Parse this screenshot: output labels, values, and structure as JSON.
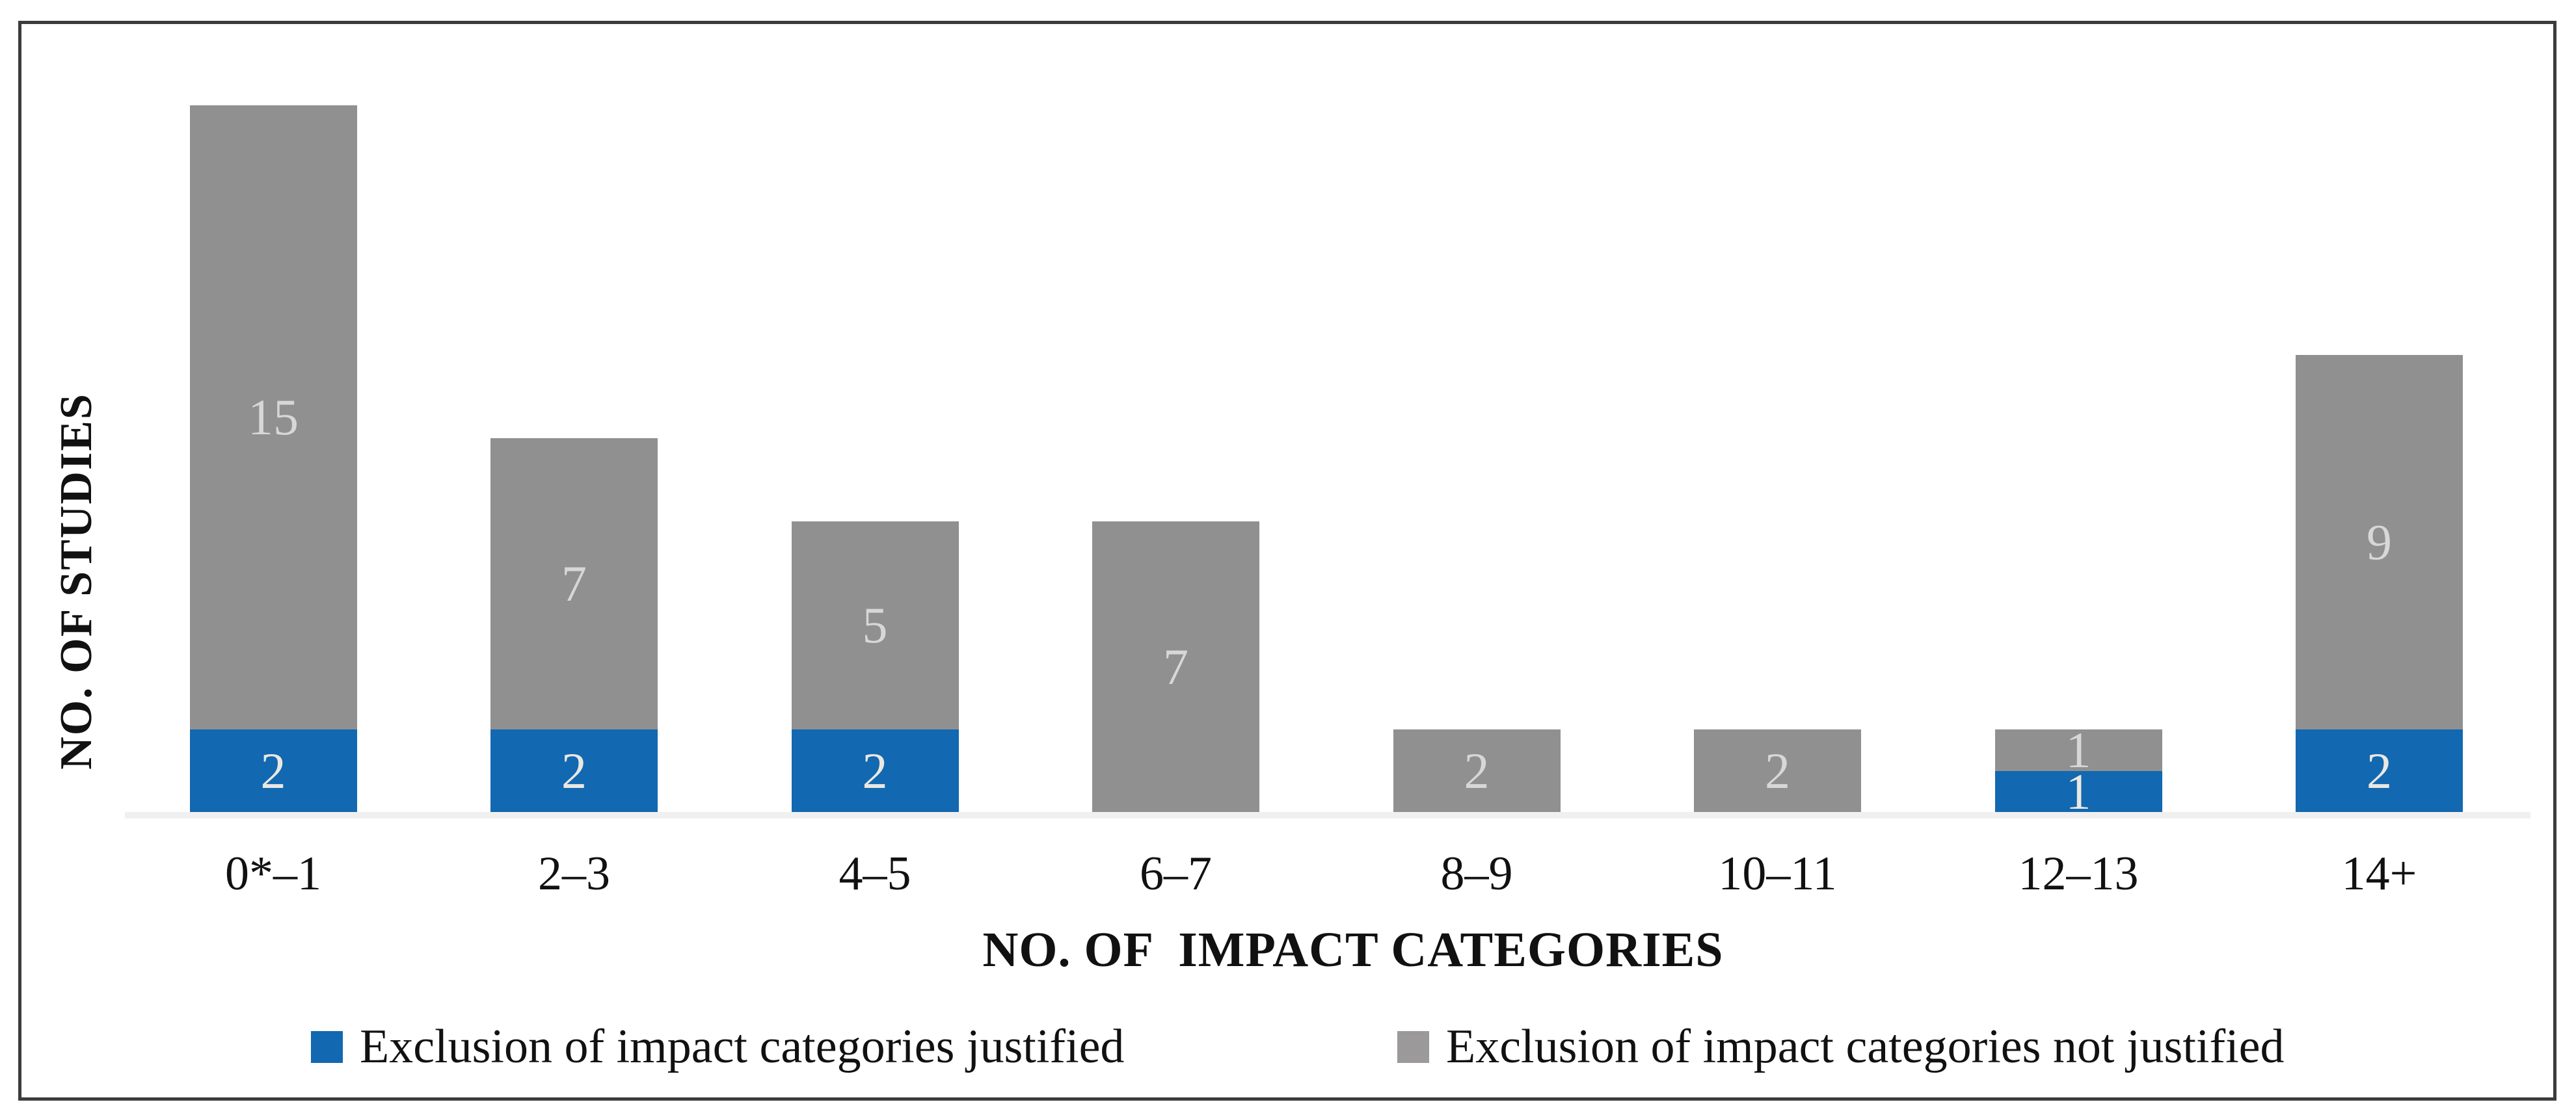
{
  "chart_data": {
    "type": "bar",
    "stacked": true,
    "categories": [
      "0*–1",
      "2–3",
      "4–5",
      "6–7",
      "8–9",
      "10–11",
      "12–13",
      "14+"
    ],
    "series": [
      {
        "name": "Exclusion of impact categories justified",
        "color": "#1268B1",
        "values": [
          2,
          2,
          2,
          0,
          0,
          0,
          1,
          2
        ]
      },
      {
        "name": "Exclusion of impact categories not justified",
        "color": "#919090",
        "values": [
          15,
          7,
          5,
          7,
          2,
          2,
          1,
          9
        ]
      }
    ],
    "totals": [
      17,
      9,
      7,
      7,
      2,
      2,
      2,
      11
    ],
    "xlabel": "NO. OF  IMPACT CATEGORIES",
    "ylabel": "NO. OF STUDIES",
    "ylim": [
      0,
      17
    ],
    "grid": false,
    "y_axis_ticks_shown": false,
    "bar_value_labels_shown": true,
    "legend_position": "bottom"
  },
  "colors": {
    "bar_blue": "#1268B1",
    "bar_gray": "#919090",
    "legend_blue_swatch": "#1268B1",
    "legend_gray_swatch": "#9B9999",
    "value_label_on_gray": "#D8D7D7",
    "value_label_on_blue": "#EAE8E2",
    "axis_line": "#F1F0F0",
    "frame_border": "#3C3C3C",
    "text": "#111111"
  }
}
